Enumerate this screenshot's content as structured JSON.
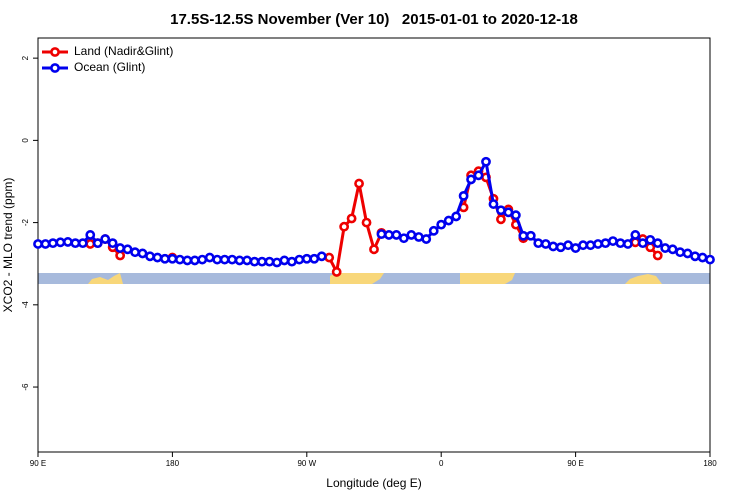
{
  "chart_data": {
    "type": "line",
    "title": "17.5S-12.5S November (Ver 10)   2015-01-01 to 2020-12-18",
    "x_label": "Longitude (deg E)",
    "y_label": "XCO2 - MLO trend (ppm)",
    "xlim": [
      90,
      540
    ],
    "xticks": [
      {
        "value": 90,
        "label": "90 E"
      },
      180,
      {
        "value": 270,
        "label": "90 W"
      },
      {
        "value": 360,
        "label": "0"
      },
      {
        "value": 450,
        "label": "90 E"
      },
      {
        "value": 540,
        "label": "180"
      }
    ],
    "ylim": [
      -7.58,
      2.49
    ],
    "yticks": [
      2,
      0,
      -2,
      -4,
      -6
    ],
    "legend": "top-left",
    "series": [
      {
        "name": "Land (Nadir&Glint)",
        "color": "#ee0000",
        "x": [
          125,
          130,
          135,
          140,
          145,
          150,
          180,
          185,
          285,
          290,
          295,
          300,
          305,
          310,
          315,
          320,
          325,
          375,
          380,
          385,
          390,
          395,
          400,
          405,
          410,
          415,
          420,
          490,
          495,
          500,
          505
        ],
        "values": [
          -2.52,
          -2.5,
          -2.4,
          -2.6,
          -2.8,
          null,
          -2.85,
          null,
          -2.85,
          -3.2,
          -2.1,
          -1.9,
          -1.05,
          -2.0,
          -2.65,
          -2.25,
          null,
          -1.63,
          -0.85,
          -0.75,
          -0.9,
          -1.42,
          -1.92,
          -1.68,
          -2.05,
          -2.38,
          null,
          -2.48,
          -2.4,
          -2.6,
          -2.8
        ]
      },
      {
        "name": "Ocean (Glint)",
        "color": "#0000ee",
        "x": [
          90,
          95,
          100,
          105,
          110,
          115,
          120,
          125,
          130,
          135,
          140,
          145,
          150,
          155,
          160,
          165,
          170,
          175,
          180,
          185,
          190,
          195,
          200,
          205,
          210,
          215,
          220,
          225,
          230,
          235,
          240,
          245,
          250,
          255,
          260,
          265,
          270,
          275,
          280,
          285,
          290,
          295,
          300,
          305,
          310,
          315,
          320,
          325,
          330,
          335,
          340,
          345,
          350,
          355,
          360,
          365,
          370,
          375,
          380,
          385,
          390,
          395,
          400,
          405,
          410,
          415,
          420,
          425,
          430,
          435,
          440,
          445,
          450,
          455,
          460,
          465,
          470,
          475,
          480,
          485,
          490,
          495,
          500,
          505,
          510,
          515,
          520,
          525,
          530,
          535,
          540
        ],
        "values": [
          -2.52,
          -2.52,
          -2.5,
          -2.48,
          -2.47,
          -2.5,
          -2.5,
          -2.3,
          -2.5,
          -2.4,
          -2.5,
          -2.62,
          -2.65,
          -2.72,
          -2.75,
          -2.82,
          -2.85,
          -2.88,
          -2.88,
          -2.9,
          -2.92,
          -2.92,
          -2.9,
          -2.85,
          -2.9,
          -2.9,
          -2.9,
          -2.92,
          -2.92,
          -2.95,
          -2.95,
          -2.95,
          -2.97,
          -2.92,
          -2.95,
          -2.9,
          -2.88,
          -2.88,
          -2.82,
          null,
          null,
          null,
          null,
          null,
          null,
          null,
          -2.28,
          -2.3,
          -2.3,
          -2.38,
          -2.3,
          -2.35,
          -2.4,
          -2.2,
          -2.05,
          -1.95,
          -1.85,
          -1.35,
          -0.95,
          -0.85,
          -0.52,
          -1.55,
          -1.7,
          -1.75,
          -1.82,
          -2.32,
          -2.32,
          -2.5,
          -2.52,
          -2.58,
          -2.6,
          -2.55,
          -2.62,
          -2.55,
          -2.55,
          -2.52,
          -2.5,
          -2.45,
          -2.5,
          -2.52,
          -2.3,
          -2.5,
          -2.42,
          -2.5,
          -2.62,
          -2.65,
          -2.72,
          -2.75,
          -2.82,
          -2.85,
          -2.9
        ]
      }
    ]
  }
}
